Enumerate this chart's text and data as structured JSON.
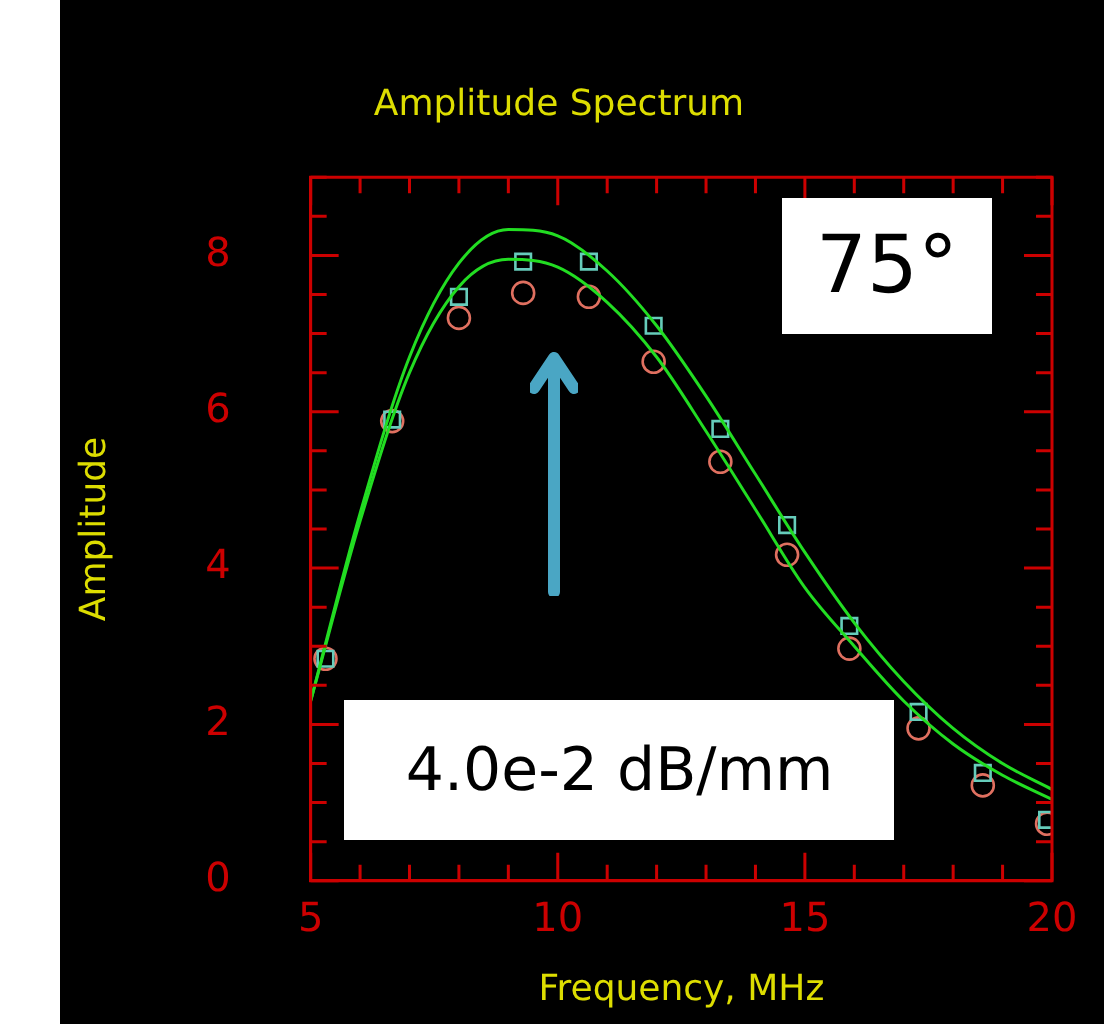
{
  "chart_data": {
    "type": "scatter",
    "title": "Amplitude Spectrum",
    "xlabel": "Frequency, MHz",
    "ylabel": "Amplitude",
    "annotations": [
      "75°",
      "4.0e-2 dB/mm"
    ],
    "xlim": [
      5,
      20
    ],
    "ylim": [
      0,
      9
    ],
    "xticks": [
      5,
      {
        "value": 6,
        "label": null
      },
      {
        "value": 7,
        "label": null
      },
      {
        "value": 8,
        "label": null
      },
      {
        "value": 9,
        "label": null
      },
      10,
      {
        "value": 11,
        "label": null
      },
      {
        "value": 12,
        "label": null
      },
      {
        "value": 13,
        "label": null
      },
      {
        "value": 14,
        "label": null
      },
      15,
      {
        "value": 16,
        "label": null
      },
      {
        "value": 17,
        "label": null
      },
      {
        "value": 18,
        "label": null
      },
      {
        "value": 19,
        "label": null
      },
      20
    ],
    "yticks": [
      0,
      {
        "value": 0.5,
        "label": null
      },
      {
        "value": 1,
        "label": null
      },
      {
        "value": 1.5,
        "label": null
      },
      2,
      {
        "value": 2.5,
        "label": null
      },
      {
        "value": 3,
        "label": null
      },
      {
        "value": 3.5,
        "label": null
      },
      4,
      {
        "value": 4.5,
        "label": null
      },
      {
        "value": 5,
        "label": null
      },
      {
        "value": 5.5,
        "label": null
      },
      6,
      {
        "value": 6.5,
        "label": null
      },
      {
        "value": 7,
        "label": null
      },
      {
        "value": 7.5,
        "label": null
      },
      8,
      {
        "value": 8.5,
        "label": null
      },
      {
        "value": 9,
        "label": null
      }
    ],
    "grid": false,
    "legend": false,
    "series": [
      {
        "type": "line",
        "marker": "none",
        "color": "#22dd22",
        "x": [
          5,
          6,
          7,
          8,
          9,
          10,
          11,
          12,
          13,
          14,
          15,
          16,
          17,
          18,
          19,
          20
        ],
        "values": [
          2.3,
          4.7,
          6.7,
          7.9,
          8.33,
          8.25,
          7.8,
          7.1,
          6.2,
          5.2,
          4.2,
          3.3,
          2.55,
          1.95,
          1.5,
          1.17
        ]
      },
      {
        "type": "line",
        "marker": "none",
        "color": "#22dd22",
        "x": [
          5,
          6,
          7,
          8,
          9,
          10,
          11,
          12,
          13,
          14,
          15,
          16,
          17,
          18,
          19,
          20
        ],
        "values": [
          2.3,
          4.6,
          6.5,
          7.6,
          7.95,
          7.85,
          7.4,
          6.7,
          5.75,
          4.75,
          3.75,
          3.0,
          2.3,
          1.75,
          1.35,
          1.04
        ]
      },
      {
        "marker": "square",
        "color": "#66ccbb",
        "x": [
          5.3,
          6.65,
          8.0,
          9.3,
          10.63,
          11.94,
          13.29,
          14.64,
          15.9,
          17.3,
          18.6,
          19.9
        ],
        "values": [
          2.84,
          5.9,
          7.47,
          7.92,
          7.92,
          7.1,
          5.78,
          4.55,
          3.26,
          2.16,
          1.38,
          0.78
        ]
      },
      {
        "marker": "circle",
        "color": "#e07060",
        "x": [
          5.3,
          6.65,
          8.0,
          9.3,
          10.63,
          11.94,
          13.29,
          14.64,
          15.9,
          17.3,
          18.6,
          19.9
        ],
        "values": [
          2.84,
          5.88,
          7.2,
          7.52,
          7.47,
          6.64,
          5.36,
          4.17,
          2.97,
          1.95,
          1.22,
          0.73
        ]
      }
    ]
  }
}
